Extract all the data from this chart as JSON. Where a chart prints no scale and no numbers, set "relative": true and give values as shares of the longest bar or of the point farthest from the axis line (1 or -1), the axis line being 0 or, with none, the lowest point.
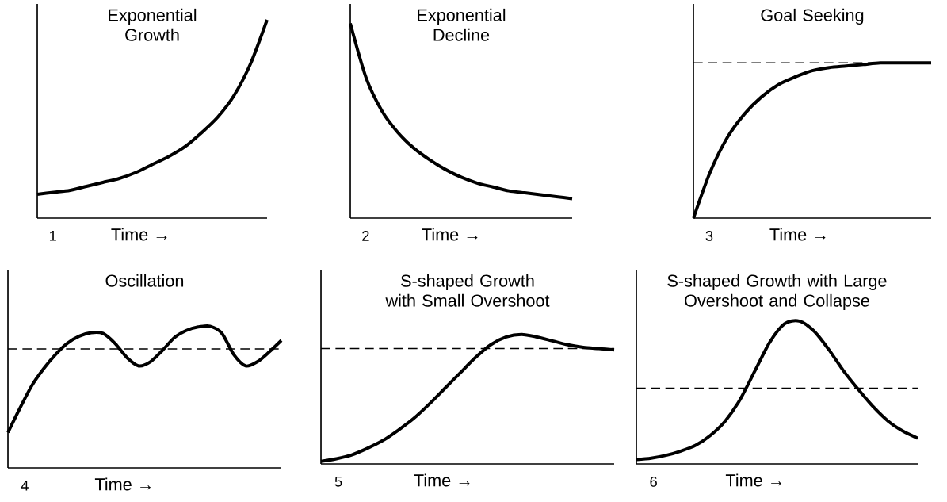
{
  "chart_data": [
    {
      "type": "line",
      "relative": true,
      "title": "Exponential Growth",
      "xlabel": "Time →",
      "annotations": [
        "1"
      ],
      "color": "#000000",
      "categories": [
        null,
        null,
        null,
        null,
        null,
        null,
        null,
        null,
        null,
        null,
        null,
        null,
        null,
        null,
        null
      ],
      "values": [
        0.12,
        0.13,
        0.14,
        0.16,
        0.18,
        0.2,
        0.23,
        0.27,
        0.31,
        0.36,
        0.43,
        0.51,
        0.62,
        0.78,
        1.0
      ]
    },
    {
      "type": "line",
      "relative": true,
      "title": "Exponential Decline",
      "xlabel": "Time →",
      "annotations": [
        "2"
      ],
      "color": "#000000",
      "categories": [
        null,
        null,
        null,
        null,
        null,
        null,
        null,
        null,
        null,
        null,
        null,
        null,
        null,
        null,
        null
      ],
      "values": [
        1.0,
        0.72,
        0.55,
        0.44,
        0.36,
        0.3,
        0.25,
        0.21,
        0.18,
        0.16,
        0.14,
        0.13,
        0.12,
        0.11,
        0.1
      ]
    },
    {
      "type": "line",
      "relative": true,
      "title": "Goal Seeking",
      "xlabel": "Time →",
      "annotations": [
        "3"
      ],
      "color": "#000000",
      "categories": [
        null,
        null,
        null,
        null,
        null,
        null,
        null,
        null,
        null,
        null,
        null,
        null,
        null,
        null,
        null
      ],
      "values": [
        0,
        0.3,
        0.52,
        0.67,
        0.78,
        0.86,
        0.91,
        0.95,
        0.97,
        0.98,
        0.99,
        1.0,
        1.0,
        1.0,
        1.0
      ],
      "ref_lines": [
        {
          "axis": "y",
          "value": 1.0,
          "line_style": "dashed"
        }
      ]
    },
    {
      "type": "line",
      "relative": true,
      "title": "Oscillation",
      "xlabel": "Time →",
      "annotations": [
        "4"
      ],
      "color": "#000000",
      "categories": [
        null,
        null,
        null,
        null,
        null,
        null,
        null,
        null,
        null,
        null,
        null,
        null,
        null,
        null,
        null,
        null,
        null,
        null,
        null,
        null,
        null,
        null,
        null,
        null
      ],
      "values": [
        0.25,
        0.42,
        0.58,
        0.7,
        0.8,
        0.88,
        0.93,
        0.955,
        0.95,
        0.88,
        0.78,
        0.72,
        0.75,
        0.83,
        0.92,
        0.97,
        0.995,
        1.0,
        0.95,
        0.8,
        0.72,
        0.75,
        0.82,
        0.9
      ],
      "ref_lines": [
        {
          "axis": "y",
          "value": 0.84,
          "line_style": "dashed"
        }
      ]
    },
    {
      "type": "line",
      "relative": true,
      "title": "S-shaped Growth with Small Overshoot",
      "xlabel": "Time →",
      "annotations": [
        "5"
      ],
      "color": "#000000",
      "categories": [
        null,
        null,
        null,
        null,
        null,
        null,
        null,
        null,
        null,
        null,
        null,
        null,
        null,
        null,
        null,
        null,
        null,
        null,
        null,
        null
      ],
      "values": [
        0.02,
        0.04,
        0.07,
        0.12,
        0.18,
        0.26,
        0.35,
        0.46,
        0.58,
        0.7,
        0.82,
        0.92,
        0.98,
        1.0,
        0.98,
        0.95,
        0.92,
        0.9,
        0.89,
        0.88
      ],
      "ref_lines": [
        {
          "axis": "y",
          "value": 0.89,
          "line_style": "dashed"
        }
      ]
    },
    {
      "type": "line",
      "relative": true,
      "title": "S-shaped Growth with Large Overshoot and Collapse",
      "xlabel": "Time →",
      "annotations": [
        "6"
      ],
      "color": "#000000",
      "categories": [
        null,
        null,
        null,
        null,
        null,
        null,
        null,
        null,
        null,
        null,
        null,
        null,
        null,
        null,
        null,
        null,
        null,
        null,
        null,
        null
      ],
      "values": [
        0.03,
        0.04,
        0.06,
        0.09,
        0.13,
        0.2,
        0.3,
        0.45,
        0.65,
        0.85,
        0.98,
        1.0,
        0.93,
        0.8,
        0.65,
        0.52,
        0.4,
        0.3,
        0.23,
        0.18
      ],
      "ref_lines": [
        {
          "axis": "y",
          "value": 0.53,
          "line_style": "dashed"
        }
      ]
    }
  ]
}
